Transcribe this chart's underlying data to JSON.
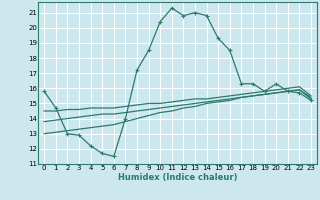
{
  "bg_color": "#cce8ee",
  "grid_color": "#ffffff",
  "line_color": "#2d7a6a",
  "xlabel": "Humidex (Indice chaleur)",
  "xlim": [
    -0.5,
    23.5
  ],
  "ylim": [
    11,
    21.7
  ],
  "yticks": [
    11,
    12,
    13,
    14,
    15,
    16,
    17,
    18,
    19,
    20,
    21
  ],
  "xticks": [
    0,
    1,
    2,
    3,
    4,
    5,
    6,
    7,
    8,
    9,
    10,
    11,
    12,
    13,
    14,
    15,
    16,
    17,
    18,
    19,
    20,
    21,
    22,
    23
  ],
  "series1_x": [
    0,
    1,
    2,
    3,
    4,
    5,
    6,
    7,
    8,
    9,
    10,
    11,
    12,
    13,
    14,
    15,
    16,
    17,
    18,
    19,
    20,
    21,
    22,
    23
  ],
  "series1_y": [
    15.8,
    14.7,
    13.0,
    12.9,
    12.2,
    11.7,
    11.5,
    14.0,
    17.2,
    18.5,
    20.4,
    21.3,
    20.8,
    21.0,
    20.8,
    19.3,
    18.5,
    16.3,
    16.3,
    15.8,
    16.3,
    15.8,
    15.7,
    15.2
  ],
  "series2_x": [
    0,
    1,
    2,
    3,
    4,
    5,
    6,
    7,
    8,
    9,
    10,
    11,
    12,
    13,
    14,
    15,
    16,
    17,
    18,
    19,
    20,
    21,
    22,
    23
  ],
  "series2_y": [
    13.0,
    13.1,
    13.2,
    13.3,
    13.4,
    13.5,
    13.6,
    13.8,
    14.0,
    14.2,
    14.4,
    14.5,
    14.7,
    14.8,
    15.0,
    15.1,
    15.2,
    15.4,
    15.5,
    15.6,
    15.7,
    15.8,
    15.9,
    15.3
  ],
  "series3_x": [
    0,
    1,
    2,
    3,
    4,
    5,
    6,
    7,
    8,
    9,
    10,
    11,
    12,
    13,
    14,
    15,
    16,
    17,
    18,
    19,
    20,
    21,
    22,
    23
  ],
  "series3_y": [
    13.8,
    13.9,
    14.0,
    14.1,
    14.2,
    14.3,
    14.3,
    14.4,
    14.5,
    14.6,
    14.7,
    14.8,
    14.9,
    15.0,
    15.1,
    15.2,
    15.3,
    15.4,
    15.5,
    15.6,
    15.7,
    15.8,
    15.9,
    15.4
  ],
  "series4_x": [
    0,
    1,
    2,
    3,
    4,
    5,
    6,
    7,
    8,
    9,
    10,
    11,
    12,
    13,
    14,
    15,
    16,
    17,
    18,
    19,
    20,
    21,
    22,
    23
  ],
  "series4_y": [
    14.5,
    14.5,
    14.6,
    14.6,
    14.7,
    14.7,
    14.7,
    14.8,
    14.9,
    15.0,
    15.0,
    15.1,
    15.2,
    15.3,
    15.3,
    15.4,
    15.5,
    15.6,
    15.7,
    15.8,
    15.9,
    16.0,
    16.1,
    15.5
  ],
  "tick_fontsize": 5.0,
  "xlabel_fontsize": 6.0
}
